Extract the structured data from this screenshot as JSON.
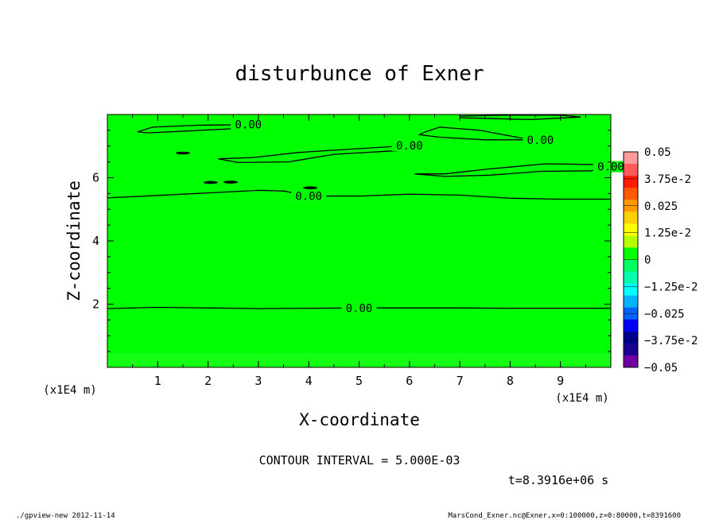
{
  "chart_data": {
    "type": "heatmap",
    "title": "disturbunce of Exner",
    "xlabel": "X-coordinate",
    "ylabel": "Z-coordinate",
    "x_unit": "(x1E4 m)",
    "y_unit": "(x1E4 m)",
    "xlim": [
      0,
      10
    ],
    "ylim": [
      0,
      8
    ],
    "x_ticks": [
      1,
      2,
      3,
      4,
      5,
      6,
      7,
      8,
      9
    ],
    "y_ticks": [
      2,
      4,
      6
    ],
    "field_value": 0,
    "contour_label": "0.00",
    "contour_interval": "CONTOUR INTERVAL = 5.000E-03",
    "time": "t=8.3916e+06 s",
    "colorbar": {
      "labels": [
        "0.05",
        "3.75e-2",
        "0.025",
        "1.25e-2",
        "0",
        "−1.25e-2",
        "−0.025",
        "−3.75e-2",
        "−0.05"
      ],
      "colors": [
        "#ff9a9a",
        "#ff5a5a",
        "#ff1a00",
        "#ff5a00",
        "#ff9a00",
        "#ffd000",
        "#ffff00",
        "#b4ff00",
        "#00ff00",
        "#00ff60",
        "#00ffb0",
        "#00ffff",
        "#00b4ff",
        "#0064ff",
        "#0000ff",
        "#00008c",
        "#1a0090",
        "#7000a0"
      ]
    },
    "contours": [
      {
        "label": "0.00",
        "points": [
          [
            0,
            1.86
          ],
          [
            1,
            1.9
          ],
          [
            2,
            1.88
          ],
          [
            3,
            1.86
          ],
          [
            4,
            1.87
          ],
          [
            5,
            1.88
          ],
          [
            6,
            1.88
          ],
          [
            7,
            1.88
          ],
          [
            8,
            1.87
          ],
          [
            9,
            1.87
          ],
          [
            10,
            1.87
          ]
        ]
      },
      {
        "label": "0.00",
        "points": [
          [
            0,
            5.36
          ],
          [
            1,
            5.44
          ],
          [
            2,
            5.52
          ],
          [
            3,
            5.6
          ],
          [
            3.5,
            5.58
          ],
          [
            4,
            5.42
          ],
          [
            5,
            5.42
          ],
          [
            6,
            5.48
          ],
          [
            7,
            5.45
          ],
          [
            8,
            5.35
          ],
          [
            9,
            5.32
          ],
          [
            10,
            5.32
          ]
        ]
      },
      {
        "label": "0.00",
        "points": [
          [
            6.3,
            7.44
          ],
          [
            6.6,
            7.6
          ],
          [
            7.4,
            7.5
          ],
          [
            8.2,
            7.26
          ],
          [
            8.6,
            7.2
          ],
          [
            7.5,
            7.2
          ],
          [
            6.6,
            7.28
          ],
          [
            6.2,
            7.36
          ],
          [
            6.3,
            7.44
          ]
        ]
      },
      {
        "label": "0.00",
        "points": [
          [
            2.2,
            6.6
          ],
          [
            2.9,
            6.64
          ],
          [
            3.8,
            6.8
          ],
          [
            4.6,
            6.88
          ],
          [
            6.0,
            7.02
          ],
          [
            5.8,
            6.86
          ],
          [
            4.5,
            6.74
          ],
          [
            3.6,
            6.5
          ],
          [
            2.6,
            6.48
          ],
          [
            2.2,
            6.6
          ]
        ]
      },
      {
        "label": "0.00",
        "points": [
          [
            6.1,
            6.12
          ],
          [
            6.7,
            6.12
          ],
          [
            7.6,
            6.28
          ],
          [
            8.7,
            6.44
          ],
          [
            9.6,
            6.42
          ],
          [
            10,
            6.35
          ],
          [
            9.6,
            6.22
          ],
          [
            8.6,
            6.2
          ],
          [
            7.6,
            6.08
          ],
          [
            6.7,
            6.04
          ],
          [
            6.1,
            6.12
          ]
        ]
      },
      {
        "label": "0.00",
        "points": [
          [
            0.6,
            7.45
          ],
          [
            0.9,
            7.6
          ],
          [
            1.8,
            7.66
          ],
          [
            2.8,
            7.68
          ],
          [
            2.6,
            7.56
          ],
          [
            1.6,
            7.48
          ],
          [
            0.8,
            7.42
          ],
          [
            0.6,
            7.45
          ]
        ]
      },
      {
        "label": "",
        "points": [
          [
            7.0,
            7.9
          ],
          [
            8.4,
            7.84
          ],
          [
            9.4,
            7.92
          ],
          [
            9.0,
            7.98
          ],
          [
            8.0,
            7.98
          ],
          [
            7.0,
            7.95
          ],
          [
            7.0,
            7.9
          ]
        ]
      }
    ],
    "blobs": [
      [
        1.5,
        6.78
      ],
      [
        2.05,
        5.85
      ],
      [
        2.45,
        5.86
      ],
      [
        4.03,
        5.68
      ]
    ],
    "grid": false
  },
  "footer": {
    "left": "./gpview-new  2012-11-14",
    "right": "MarsCond_Exner.nc@Exner,x=0:100000,z=0:80000,t=8391600"
  }
}
